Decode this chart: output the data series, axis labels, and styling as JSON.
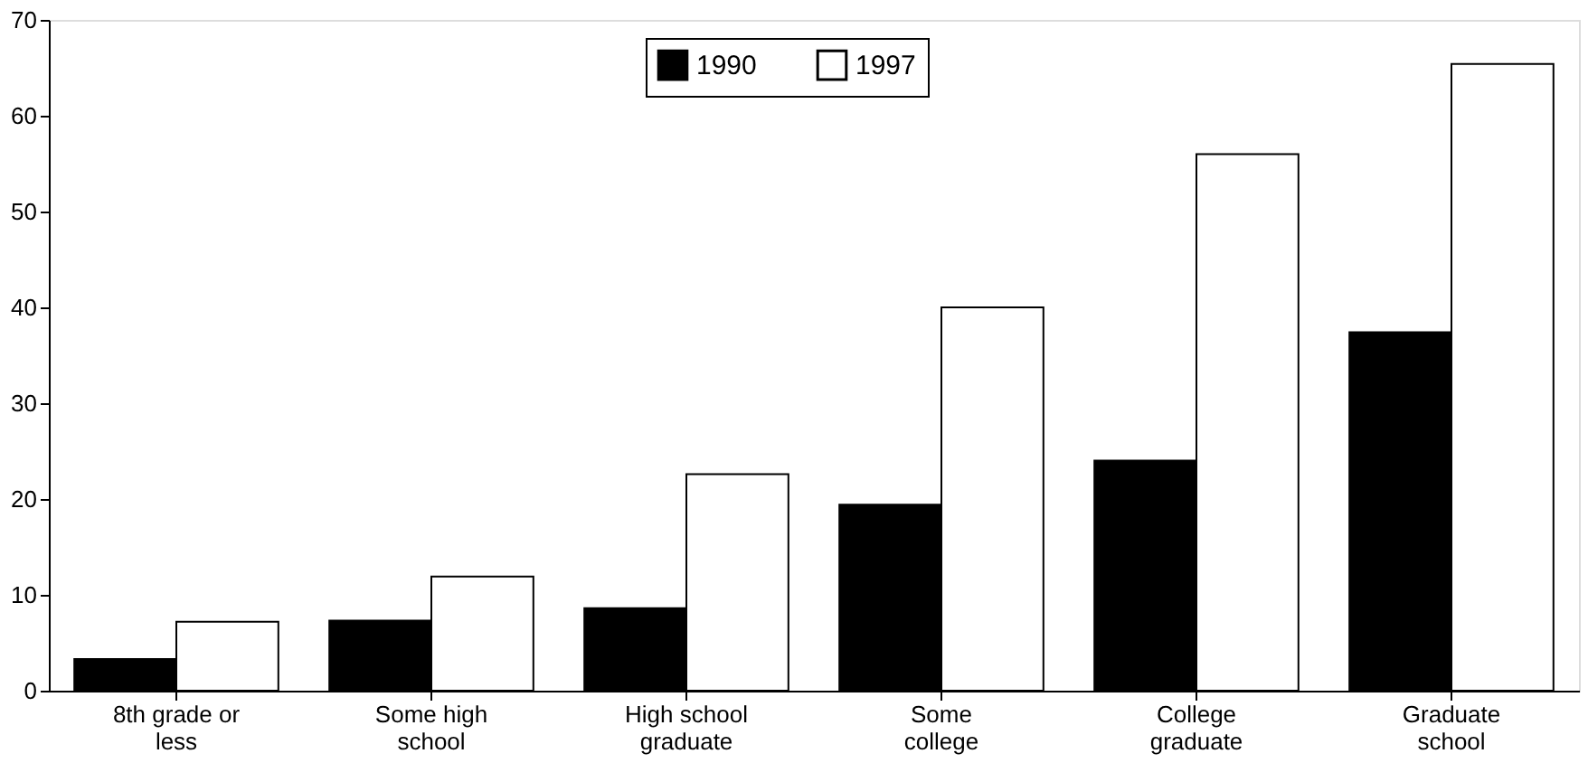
{
  "chart_data": {
    "type": "bar",
    "categories": [
      "8th grade or less",
      "Some high school",
      "High school graduate",
      "Some college",
      "College graduate",
      "Graduate school"
    ],
    "series": [
      {
        "name": "1990",
        "color": "#000000",
        "values": [
          3.3,
          7.3,
          8.6,
          19.4,
          24,
          37.4
        ]
      },
      {
        "name": "1997",
        "color": "#ffffff",
        "values": [
          7.2,
          11.9,
          22.6,
          40,
          56,
          65.4
        ]
      }
    ],
    "ylim": [
      0,
      70
    ],
    "yticks": [
      0,
      10,
      20,
      30,
      40,
      50,
      60,
      70
    ],
    "grid": false,
    "legend": "top"
  }
}
